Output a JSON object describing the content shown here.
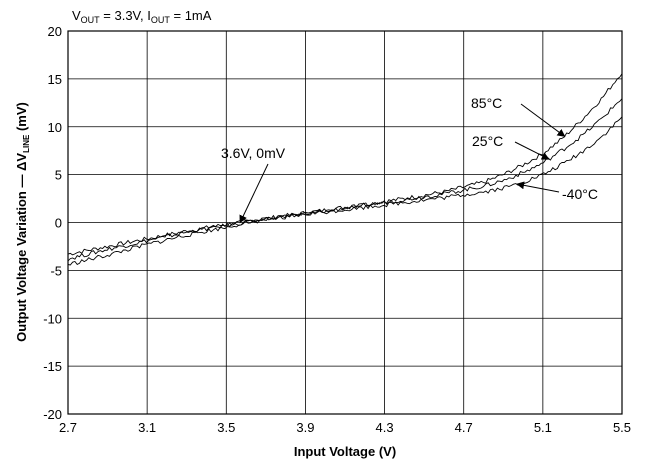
{
  "chart_data": {
    "type": "line",
    "title": {
      "v": "V",
      "v_sub": "OUT",
      "mid": " = 3.3V, I",
      "i_sub": "OUT",
      "tail": " = 1mA"
    },
    "xlabel": "Input Voltage  (V)",
    "ylabel": {
      "pre": "Output Voltage Variation — ΔV",
      "sub": "LINE",
      "post": " (mV)"
    },
    "xlim": [
      2.7,
      5.5
    ],
    "ylim": [
      -20,
      20
    ],
    "x_ticks": [
      "2.7",
      "3.1",
      "3.5",
      "3.9",
      "4.3",
      "4.7",
      "5.1",
      "5.5"
    ],
    "y_ticks": [
      "-20",
      "-15",
      "-10",
      "-5",
      "0",
      "5",
      "10",
      "15",
      "20"
    ],
    "grid": true,
    "series": [
      {
        "name": "85°C",
        "x": [
          2.7,
          2.9,
          3.1,
          3.3,
          3.5,
          3.6,
          3.8,
          4.0,
          4.2,
          4.4,
          4.6,
          4.8,
          4.9,
          5.0,
          5.1,
          5.2,
          5.3,
          5.4,
          5.5
        ],
        "y": [
          -3.3,
          -2.5,
          -1.7,
          -0.9,
          -0.2,
          0.1,
          0.7,
          1.3,
          1.9,
          2.5,
          3.2,
          4.2,
          5.0,
          6.0,
          7.2,
          8.8,
          10.8,
          13.0,
          15.7
        ]
      },
      {
        "name": "25°C",
        "x": [
          2.7,
          2.9,
          3.1,
          3.3,
          3.5,
          3.6,
          3.8,
          4.0,
          4.2,
          4.4,
          4.6,
          4.8,
          4.9,
          5.0,
          5.1,
          5.2,
          5.3,
          5.4,
          5.5
        ],
        "y": [
          -3.8,
          -2.8,
          -1.9,
          -1.0,
          -0.3,
          0.0,
          0.6,
          1.2,
          1.8,
          2.4,
          3.0,
          3.8,
          4.4,
          5.2,
          6.2,
          7.6,
          9.1,
          10.9,
          13.0
        ]
      },
      {
        "name": "-40°C",
        "x": [
          2.7,
          2.9,
          3.1,
          3.3,
          3.5,
          3.6,
          3.8,
          4.0,
          4.2,
          4.4,
          4.6,
          4.8,
          4.9,
          5.0,
          5.1,
          5.2,
          5.3,
          5.4,
          5.5
        ],
        "y": [
          -4.4,
          -3.4,
          -2.3,
          -1.3,
          -0.5,
          0.0,
          0.6,
          1.1,
          1.6,
          2.1,
          2.6,
          3.2,
          3.6,
          4.2,
          5.0,
          6.1,
          7.4,
          9.0,
          11.0
        ]
      }
    ],
    "annotations": [
      {
        "text": "85°C",
        "series": "85°C",
        "target_x": 5.21
      },
      {
        "text": "25°C",
        "series": "25°C",
        "target_x": 5.13
      },
      {
        "text": "-40°C",
        "series": "-40°C",
        "target_x": 4.97
      },
      {
        "text": "3.6V, 0mV",
        "target": [
          3.57,
          0.0
        ]
      }
    ]
  }
}
